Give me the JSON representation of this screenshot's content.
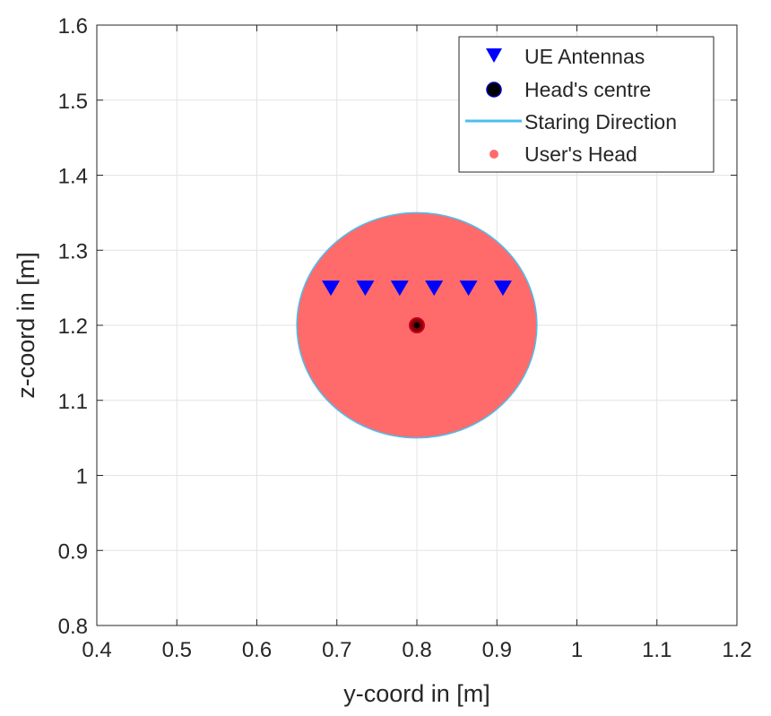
{
  "chart_data": {
    "type": "scatter",
    "xlabel": "y-coord in [m]",
    "ylabel": "z-coord in [m]",
    "xlim": [
      0.4,
      1.2
    ],
    "ylim": [
      0.8,
      1.6
    ],
    "x_ticks": [
      0.4,
      0.5,
      0.6,
      0.7,
      0.8,
      0.9,
      1,
      1.1,
      1.2
    ],
    "y_ticks": [
      0.8,
      0.9,
      1,
      1.1,
      1.2,
      1.3,
      1.4,
      1.5,
      1.6
    ],
    "x_tick_labels": [
      "0.4",
      "0.5",
      "0.6",
      "0.7",
      "0.8",
      "0.9",
      "1",
      "1.1",
      "1.2"
    ],
    "y_tick_labels": [
      "0.8",
      "0.9",
      "1",
      "1.1",
      "1.2",
      "1.3",
      "1.4",
      "1.5",
      "1.6"
    ],
    "grid": true,
    "legend_position": "top-right",
    "series": [
      {
        "name": "UE Antennas",
        "marker": "triangle-down",
        "color": "#0000ff",
        "x": [
          0.6925,
          0.7355,
          0.7785,
          0.8215,
          0.8645,
          0.9075
        ],
        "y": [
          1.25,
          1.25,
          1.25,
          1.25,
          1.25,
          1.25
        ]
      },
      {
        "name": "Head's centre",
        "marker": "circle",
        "color": "#000000",
        "x": [
          0.8
        ],
        "y": [
          1.2
        ]
      },
      {
        "name": "Staring Direction",
        "marker": "line",
        "color": "#4dbeee",
        "x": [],
        "y": []
      },
      {
        "name": "User's Head",
        "marker": "filled-circle",
        "color": "#ff6b6b",
        "center": [
          0.8,
          1.2
        ],
        "radius": 0.15
      }
    ]
  }
}
